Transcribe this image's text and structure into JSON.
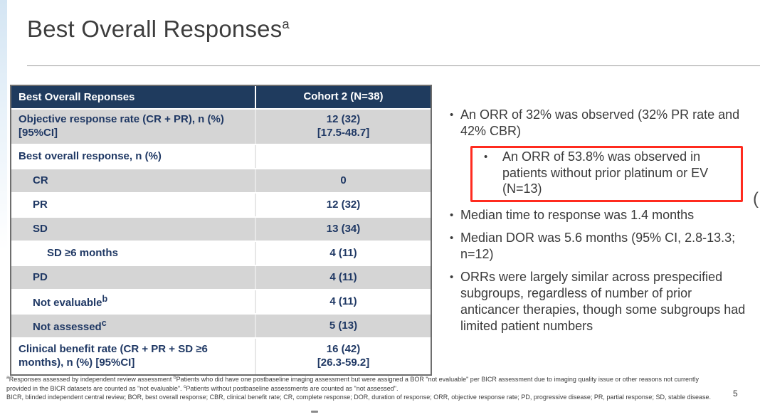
{
  "slide": {
    "title": {
      "text": "Best Overall Responses",
      "sup": "a"
    },
    "page_number": "5"
  },
  "table": {
    "header": {
      "col1": "Best Overall Reponses",
      "col2": "Cohort 2 (N=38)"
    },
    "rows": [
      {
        "label": "Objective response rate (CR + PR), n (%)",
        "label2": "[95%CI]",
        "value": "12 (32)",
        "value2": "[17.5-48.7]"
      },
      {
        "label": "Best overall response, n (%)",
        "value": ""
      },
      {
        "label": "CR",
        "value": "0"
      },
      {
        "label": "PR",
        "value": "12 (32)"
      },
      {
        "label": "SD",
        "value": "13 (34)"
      },
      {
        "label": "SD ≥6 months",
        "value": "4 (11)"
      },
      {
        "label": "PD",
        "value": "4 (11)"
      },
      {
        "label": "Not evaluable",
        "label_sup": "b",
        "value": "4 (11)"
      },
      {
        "label": "Not assessed",
        "label_sup": "c",
        "value": "5 (13)"
      },
      {
        "label": "Clinical benefit rate (CR + PR + SD ≥6",
        "label2": "months), n (%) [95%CI]",
        "value": "16 (42)",
        "value2": "[26.3-59.2]"
      }
    ]
  },
  "bullets": {
    "b1": "An ORR of 32% was observed (32% PR rate and 42% CBR)",
    "highlight_sub": "An ORR of 53.8% was observed in patients without prior platinum or EV (N=13)",
    "b2": "Median time to response was 1.4 months",
    "b3": "Median DOR was 5.6 months (95% CI, 2.8-13.3; n=12)",
    "b4": "ORRs were largely similar across prespecified subgroups, regardless of number of prior anticancer therapies, though some subgroups had limited patient numbers",
    "bullet_glyph": "•",
    "highlight_color": "#ff2b1f"
  },
  "footnotes": {
    "sup_a": "a",
    "seg_a": "Responses assessed by independent review assessment ",
    "sup_b": "b",
    "seg_b": "Patients who did have one postbaseline imaging assessment but were assigned a BOR \"not evaluable\" per BICR assessment due to imaging quality issue or other reasons not currently provided in the BICR datasets are counted as \"not evaluable\". ",
    "sup_c": "c",
    "seg_c": "Patients without postbaseline assessments are counted as \"not assessed\".",
    "abbreviations": "BICR, blinded independent central review; BOR, best overall response; CBR, clinical benefit rate; CR, complete response; DOR, duration of response; ORR, objective response rate; PD, progressive disease; PR, partial response; SD, stable disease."
  },
  "artifacts": {
    "cropped_glyph": "("
  },
  "colors": {
    "table_header_bg": "#1f3b5e",
    "table_text": "#1f3864",
    "table_shaded_row": "#d5d5d5",
    "highlight_border": "#ff2b1f"
  }
}
